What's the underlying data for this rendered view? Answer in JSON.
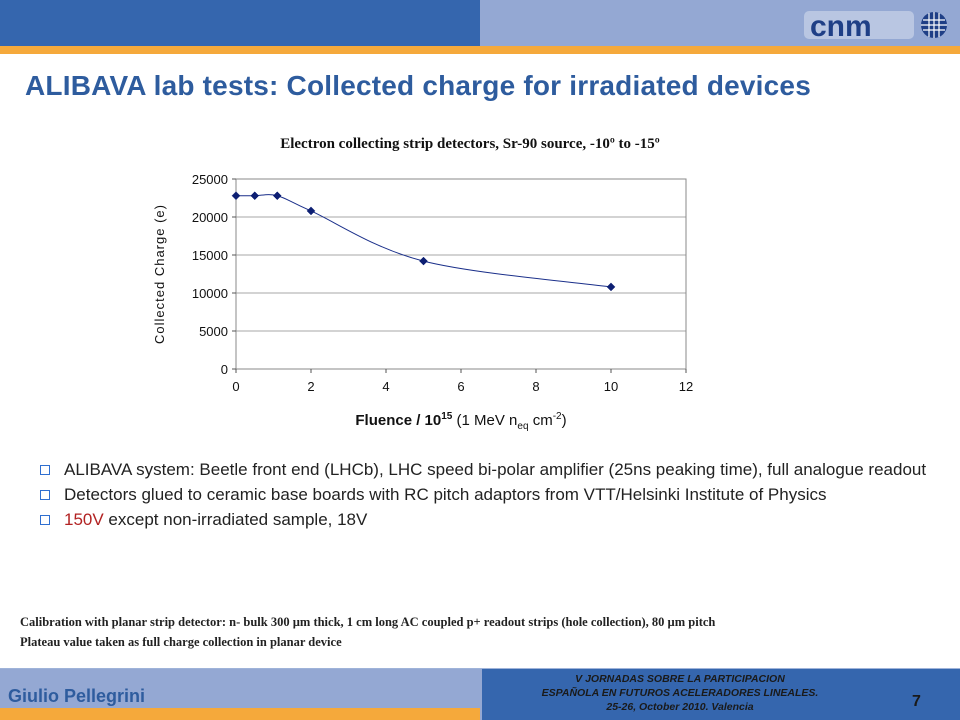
{
  "slide": {
    "title": "ALIBAVA lab tests: Collected charge for irradiated devices",
    "logo_text": "cnm",
    "bullets": [
      {
        "text": "ALIBAVA system: Beetle front end (LHCb), LHC speed bi-polar amplifier (25ns peaking time), full analogue readout",
        "highlight": ""
      },
      {
        "text": "Detectors glued to ceramic base boards with RC pitch adaptors from VTT/Helsinki Institute of Physics",
        "highlight": ""
      },
      {
        "text": " except non-irradiated sample, 18V",
        "highlight": "150V"
      }
    ],
    "notes": [
      "Calibration with planar strip detector: n- bulk 300 µm thick, 1 cm long AC coupled p+ readout strips (hole collection), 80 µm pitch",
      "Plateau value taken as full charge collection in planar device"
    ],
    "footer": {
      "author": "Giulio Pellegrini",
      "conference": [
        "V JORNADAS SOBRE LA PARTICIPACION",
        "ESPAÑOLA EN FUTUROS ACELERADORES LINEALES.",
        "25-26, October 2010. Valencia"
      ],
      "page": "7"
    }
  },
  "colors": {
    "header_dark": "#3566ae",
    "header_light": "#94a8d3",
    "accent_orange": "#f5a93b",
    "title_blue": "#2e5c9e",
    "highlight_red": "#b22222",
    "marker_navy": "#0d1f73"
  },
  "chart_data": {
    "type": "scatter",
    "title": "Electron collecting strip detectors, Sr-90 source, -10º to -15º",
    "ylabel": "Collected Charge (e)",
    "xlabel_parts": {
      "prefix": "Fluence / 10",
      "exp": "15",
      "mid": " (1 MeV n",
      "sub": "eq",
      "mid2": " cm",
      "exp2": "-2",
      "suffix": ")"
    },
    "xlim": [
      0,
      12
    ],
    "ylim": [
      0,
      25000
    ],
    "xticks": [
      "0",
      "2",
      "4",
      "6",
      "8",
      "10",
      "12"
    ],
    "yticks": [
      "0",
      "5000",
      "10000",
      "15000",
      "20000",
      "25000"
    ],
    "grid": true,
    "legend": "none",
    "smooth_line": true,
    "points": [
      {
        "x": 0,
        "y": 22800
      },
      {
        "x": 0.5,
        "y": 22800
      },
      {
        "x": 1.1,
        "y": 22800
      },
      {
        "x": 2,
        "y": 20800
      },
      {
        "x": 5,
        "y": 14200
      },
      {
        "x": 10,
        "y": 10800
      }
    ]
  }
}
